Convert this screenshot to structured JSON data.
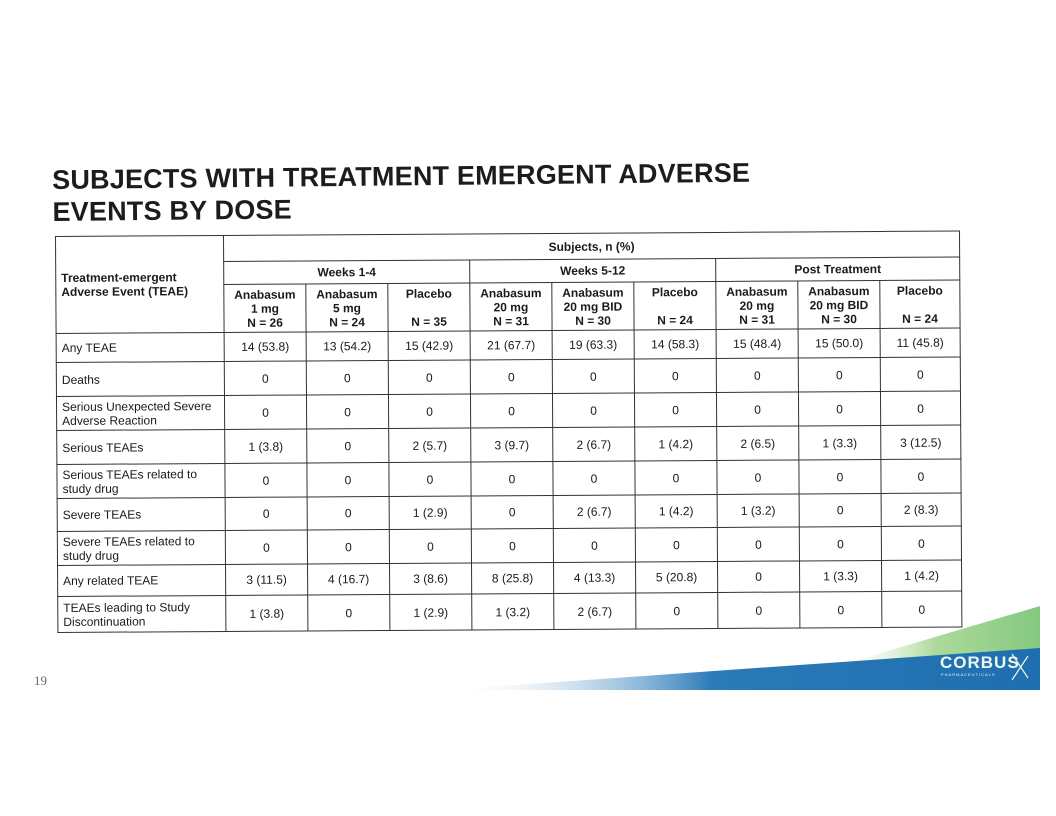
{
  "title_lines": [
    "SUBJECTS WITH TREATMENT EMERGENT ADVERSE",
    "EVENTS BY DOSE"
  ],
  "table": {
    "corner_lines": [
      "Treatment-emergent",
      "Adverse Event (TEAE)"
    ],
    "super_header": "Subjects, n (%)",
    "periods": [
      "Weeks 1-4",
      "Weeks 5-12",
      "Post Treatment"
    ],
    "arms": [
      {
        "lines": [
          "Anabasum",
          "1 mg",
          "N = 26"
        ]
      },
      {
        "lines": [
          "Anabasum",
          "5 mg",
          "N = 24"
        ]
      },
      {
        "lines": [
          "Placebo",
          "",
          "N = 35"
        ]
      },
      {
        "lines": [
          "Anabasum",
          "20 mg",
          "N = 31"
        ]
      },
      {
        "lines": [
          "Anabasum",
          "20 mg BID",
          "N = 30"
        ]
      },
      {
        "lines": [
          "Placebo",
          "",
          "N = 24"
        ]
      },
      {
        "lines": [
          "Anabasum",
          "20 mg",
          "N = 31"
        ]
      },
      {
        "lines": [
          "Anabasum",
          "20 mg BID",
          "N = 30"
        ]
      },
      {
        "lines": [
          "Placebo",
          "",
          "N = 24"
        ]
      }
    ],
    "rows": [
      {
        "label": "Any TEAE",
        "values": [
          "14 (53.8)",
          "13 (54.2)",
          "15 (42.9)",
          "21 (67.7)",
          "19 (63.3)",
          "14 (58.3)",
          "15 (48.4)",
          "15 (50.0)",
          "11 (45.8)"
        ]
      },
      {
        "label": "Deaths",
        "values": [
          "0",
          "0",
          "0",
          "0",
          "0",
          "0",
          "0",
          "0",
          "0"
        ]
      },
      {
        "label": "Serious Unexpected Severe Adverse Reaction",
        "values": [
          "0",
          "0",
          "0",
          "0",
          "0",
          "0",
          "0",
          "0",
          "0"
        ]
      },
      {
        "label": "Serious TEAEs",
        "values": [
          "1 (3.8)",
          "0",
          "2 (5.7)",
          "3 (9.7)",
          "2 (6.7)",
          "1 (4.2)",
          "2 (6.5)",
          "1 (3.3)",
          "3 (12.5)"
        ]
      },
      {
        "label": "Serious TEAEs related to study drug",
        "values": [
          "0",
          "0",
          "0",
          "0",
          "0",
          "0",
          "0",
          "0",
          "0"
        ]
      },
      {
        "label": "Severe TEAEs",
        "values": [
          "0",
          "0",
          "1 (2.9)",
          "0",
          "2 (6.7)",
          "1 (4.2)",
          "1 (3.2)",
          "0",
          "2 (8.3)"
        ]
      },
      {
        "label": "Severe TEAEs related to study drug",
        "values": [
          "0",
          "0",
          "0",
          "0",
          "0",
          "0",
          "0",
          "0",
          "0"
        ]
      },
      {
        "label": "Any related TEAE",
        "values": [
          "3 (11.5)",
          "4 (16.7)",
          "3 (8.6)",
          "8 (25.8)",
          "4 (13.3)",
          "5 (20.8)",
          "0",
          "1 (3.3)",
          "1 (4.2)"
        ]
      },
      {
        "label": "TEAEs leading to Study Discontinuation",
        "values": [
          "1 (3.8)",
          "0",
          "1 (2.9)",
          "1 (3.2)",
          "2 (6.7)",
          "0",
          "0",
          "0",
          "0"
        ]
      }
    ]
  },
  "page_number": "19",
  "logo": {
    "name": "CORBUS",
    "subtitle": "PHARMACEUTICALS"
  },
  "colors": {
    "accent_blue": "#1f6fb0",
    "accent_green": "#8cc878",
    "title": "#1c1c1c"
  }
}
